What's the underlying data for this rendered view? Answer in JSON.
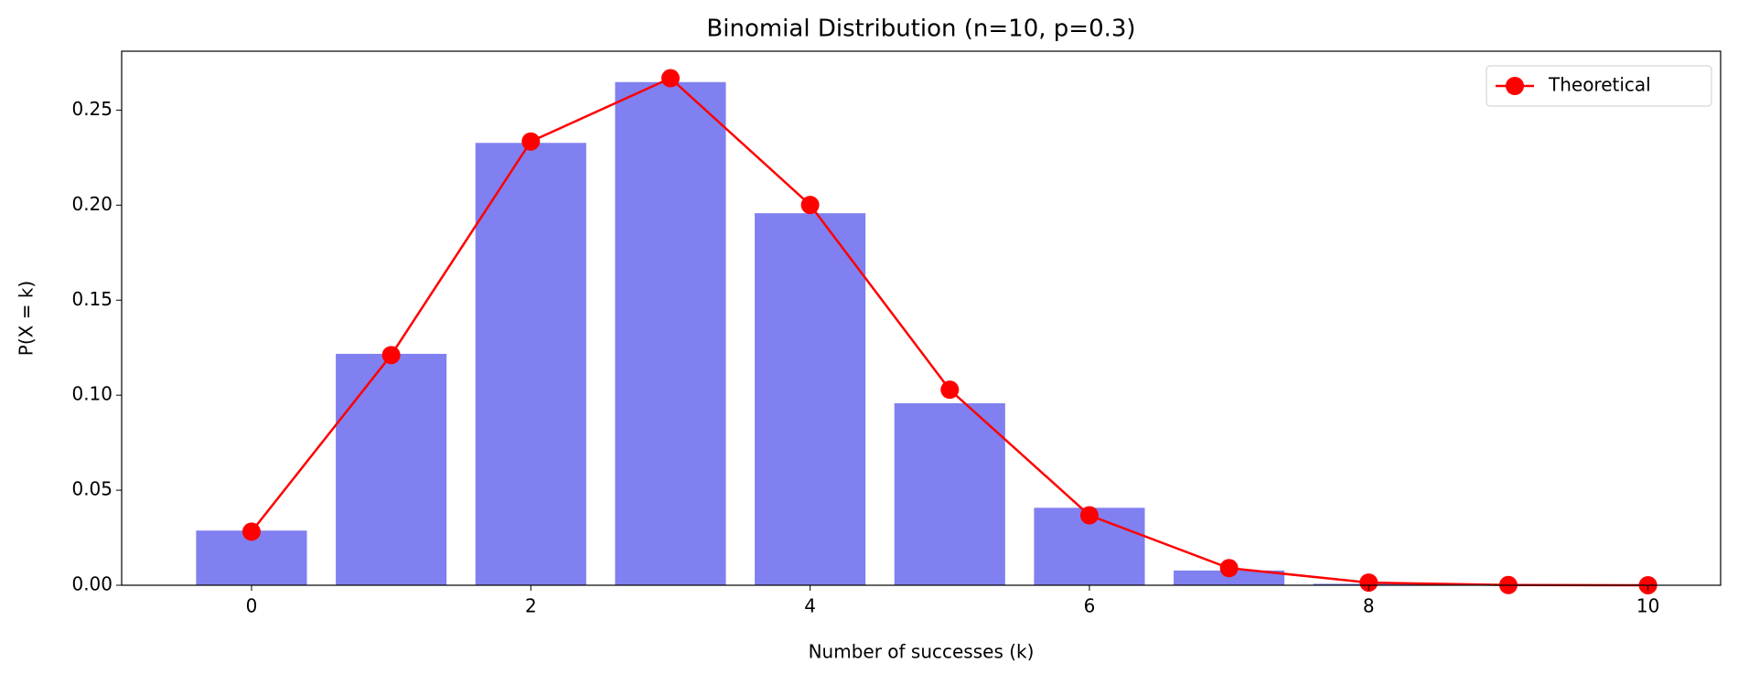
{
  "chart_data": {
    "type": "bar",
    "title": "Binomial Distribution (n=10, p=0.3)",
    "xlabel": "Number of successes (k)",
    "ylabel": "P(X = k)",
    "x": [
      0,
      1,
      2,
      3,
      4,
      5,
      6,
      7,
      8,
      9,
      10
    ],
    "series": [
      {
        "type": "bar",
        "color": "#8080f0",
        "values": [
          0.029,
          0.122,
          0.233,
          0.265,
          0.196,
          0.096,
          0.041,
          0.008,
          0.001,
          0,
          0
        ]
      },
      {
        "type": "line",
        "name": "Theoretical",
        "color": "#ff0000",
        "values": [
          0.0282,
          0.1211,
          0.2335,
          0.2668,
          0.2001,
          0.1029,
          0.0368,
          0.009,
          0.0014,
          0.0001,
          5.9e-06
        ]
      }
    ],
    "xlim": [
      -0.93,
      10.52
    ],
    "ylim": [
      0,
      0.281
    ],
    "xticks": [
      0,
      2,
      4,
      6,
      8,
      10
    ],
    "yticks": [
      {
        "value": 0,
        "label": "0.00"
      },
      {
        "value": 0.05,
        "label": "0.05"
      },
      {
        "value": 0.1,
        "label": "0.10"
      },
      {
        "value": 0.15,
        "label": "0.15"
      },
      {
        "value": 0.2,
        "label": "0.20"
      },
      {
        "value": 0.25,
        "label": "0.25"
      }
    ],
    "legend": "upper right"
  }
}
